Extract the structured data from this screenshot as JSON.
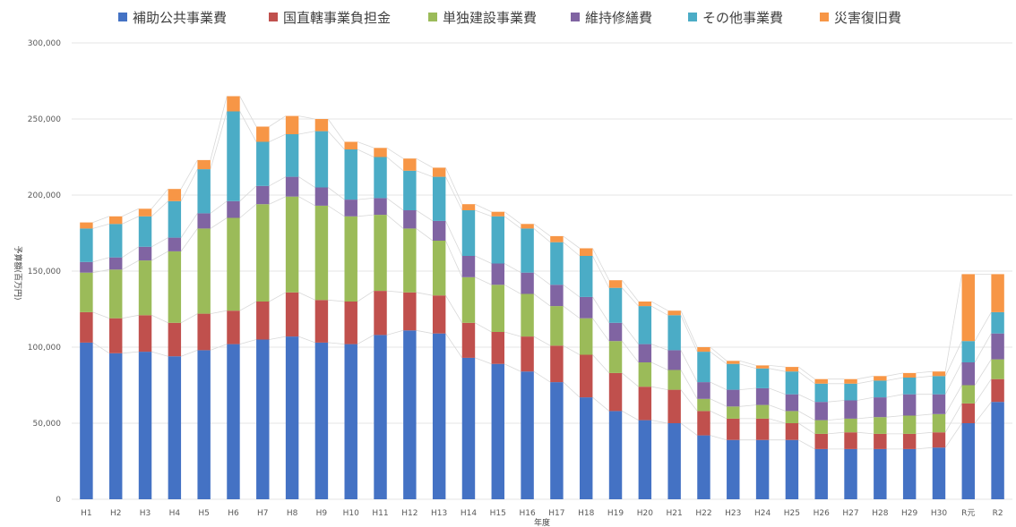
{
  "chart_data": {
    "type": "bar",
    "stacked": true,
    "ylabel": "予算額(百万円)",
    "xlabel": "年度",
    "ylim": [
      0,
      300000
    ],
    "yticks": [
      0,
      50000,
      100000,
      150000,
      200000,
      250000,
      300000
    ],
    "ytick_labels": [
      "0",
      "50,000",
      "100,000",
      "150,000",
      "200,000",
      "250,000",
      "300,000"
    ],
    "grid": true,
    "legend_position": "top",
    "categories": [
      "H1",
      "H2",
      "H3",
      "H4",
      "H5",
      "H6",
      "H7",
      "H8",
      "H9",
      "H10",
      "H11",
      "H12",
      "H13",
      "H14",
      "H15",
      "H16",
      "H17",
      "H18",
      "H19",
      "H20",
      "H21",
      "H22",
      "H23",
      "H24",
      "H25",
      "H26",
      "H27",
      "H28",
      "H29",
      "H30",
      "R元",
      "R2"
    ],
    "series": [
      {
        "name": "補助公共事業費",
        "color": "#4472c4",
        "values": [
          103000,
          96000,
          97000,
          94000,
          98000,
          102000,
          105000,
          107000,
          103000,
          102000,
          108000,
          111000,
          109000,
          93000,
          89000,
          84000,
          77000,
          67000,
          58000,
          52000,
          50000,
          42000,
          39000,
          39000,
          39000,
          33000,
          33000,
          33000,
          33000,
          34000,
          50000,
          64000
        ]
      },
      {
        "name": "国直轄事業負担金",
        "color": "#c0504d",
        "values": [
          20000,
          23000,
          24000,
          22000,
          24000,
          22000,
          25000,
          29000,
          28000,
          28000,
          29000,
          25000,
          25000,
          23000,
          21000,
          23000,
          24000,
          28000,
          25000,
          22000,
          22000,
          16000,
          14000,
          14000,
          11000,
          10000,
          11000,
          10000,
          10000,
          10000,
          13000,
          15000
        ]
      },
      {
        "name": "単独建設事業費",
        "color": "#9bbb59",
        "values": [
          26000,
          32000,
          36000,
          47000,
          56000,
          61000,
          64000,
          63000,
          62000,
          56000,
          50000,
          42000,
          36000,
          30000,
          31000,
          28000,
          26000,
          24000,
          21000,
          16000,
          13000,
          8000,
          8000,
          9000,
          8000,
          9000,
          9000,
          11000,
          12000,
          12000,
          12000,
          13000
        ]
      },
      {
        "name": "維持修繕費",
        "color": "#8064a2",
        "values": [
          7000,
          8000,
          9000,
          9000,
          10000,
          11000,
          12000,
          13000,
          12000,
          11000,
          11000,
          12000,
          13000,
          14000,
          14000,
          14000,
          14000,
          14000,
          12000,
          12000,
          13000,
          11000,
          11000,
          11000,
          11000,
          12000,
          12000,
          13000,
          14000,
          13000,
          15000,
          17000
        ]
      },
      {
        "name": "その他事業費",
        "color": "#4bacc6",
        "values": [
          22000,
          22000,
          20000,
          24000,
          29000,
          59000,
          29000,
          28000,
          37000,
          33000,
          27000,
          26000,
          29000,
          30000,
          31000,
          29000,
          28000,
          27000,
          23000,
          25000,
          23000,
          20000,
          17000,
          13000,
          15000,
          12000,
          11000,
          11000,
          11000,
          12000,
          14000,
          14000
        ]
      },
      {
        "name": "災害復旧費",
        "color": "#f79646",
        "values": [
          4000,
          5000,
          5000,
          8000,
          6000,
          10000,
          10000,
          12000,
          8000,
          5000,
          6000,
          8000,
          6000,
          4000,
          3000,
          3000,
          4000,
          5000,
          5000,
          3000,
          3000,
          3000,
          2000,
          2000,
          3000,
          3000,
          3000,
          3000,
          3000,
          3000,
          44000,
          25000
        ]
      }
    ]
  }
}
